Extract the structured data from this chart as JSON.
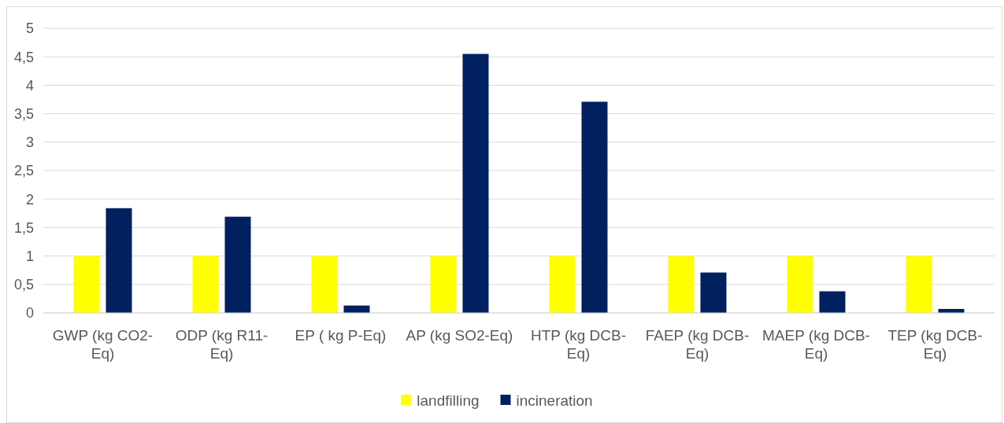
{
  "chart_data": {
    "type": "bar",
    "categories": [
      "GWP (kg CO2-Eq)",
      "ODP (kg R11-Eq)",
      "EP ( kg P-Eq)",
      "AP (kg SO2-Eq)",
      "HTP (kg DCB-Eq)",
      "FAEP (kg DCB-Eq)",
      "MAEP (kg DCB-Eq)",
      "TEP (kg DCB-Eq)"
    ],
    "series": [
      {
        "name": "landfilling",
        "color": "#ffff00",
        "values": [
          1,
          1,
          1,
          1,
          1,
          1,
          1,
          1
        ]
      },
      {
        "name": "incineration",
        "color": "#002060",
        "values": [
          1.84,
          1.69,
          0.13,
          4.55,
          3.71,
          0.71,
          0.38,
          0.07
        ]
      }
    ],
    "ylim": [
      0,
      5
    ],
    "yticks": [
      0,
      {
        "value": 0.5,
        "label": "0,5"
      },
      1,
      {
        "value": 1.5,
        "label": "1,5"
      },
      2,
      {
        "value": 2.5,
        "label": "2,5"
      },
      3,
      {
        "value": 3.5,
        "label": "3,5"
      },
      4,
      {
        "value": 4.5,
        "label": "4,5"
      },
      5
    ],
    "grid": "y",
    "legend": "bottom"
  }
}
